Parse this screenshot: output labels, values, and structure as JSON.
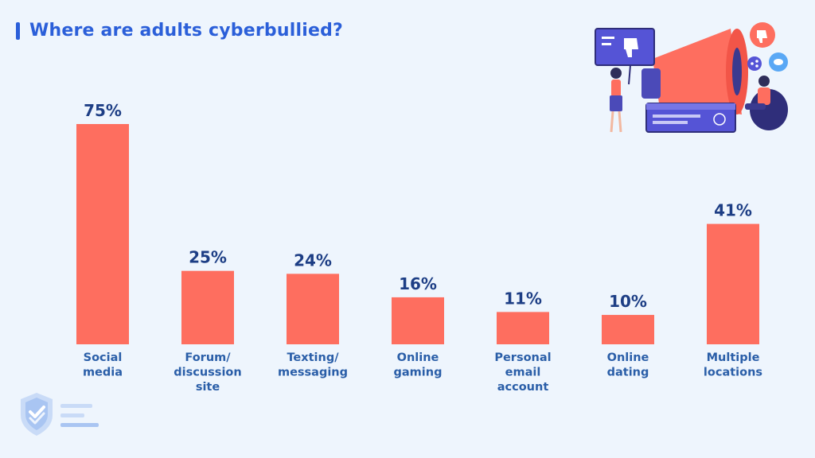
{
  "chart_data": {
    "type": "bar",
    "title": "Where are adults cyberbullied?",
    "categories": [
      [
        "Social",
        "media"
      ],
      [
        "Forum/",
        "discussion",
        "site"
      ],
      [
        "Texting/",
        "messaging"
      ],
      [
        "Online",
        "gaming"
      ],
      [
        "Personal",
        "email",
        "account"
      ],
      [
        "Online",
        "dating"
      ],
      [
        "Multiple",
        "locations"
      ]
    ],
    "values": [
      75,
      25,
      24,
      16,
      11,
      10,
      41
    ],
    "value_suffix": "%",
    "ylim": [
      0,
      75
    ],
    "grid": false,
    "colors": {
      "bar": "#fe6e5f",
      "value_label": "#1d3e85",
      "category_label": "#2a5ea8",
      "title": "#2b5fd9"
    }
  },
  "decor": {
    "illustration": "megaphone-illustration",
    "logo": "shield-check-logo"
  }
}
